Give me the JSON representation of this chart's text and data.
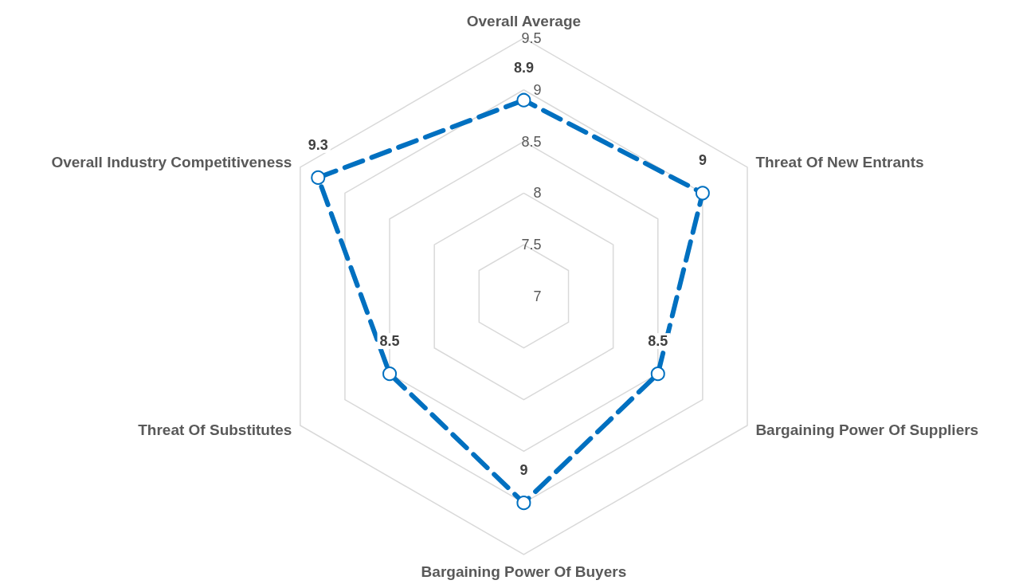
{
  "chart_data": {
    "type": "radar",
    "categories": [
      "Overall Average",
      "Threat Of New Entrants",
      "Bargaining Power Of Suppliers",
      "Bargaining Power Of Buyers",
      "Threat Of Substitutes",
      "Overall Industry Competitiveness"
    ],
    "series": [
      {
        "color": "#0070c0",
        "values": [
          8.9,
          9,
          8.5,
          9,
          8.5,
          9.3
        ]
      }
    ],
    "ylim": [
      7,
      9.5
    ],
    "yticks": [
      7,
      7.5,
      8,
      8.5,
      9,
      9.5
    ],
    "grid": true,
    "legend": false,
    "marker": "circle",
    "line_style": "dashed",
    "data_labels": true
  }
}
